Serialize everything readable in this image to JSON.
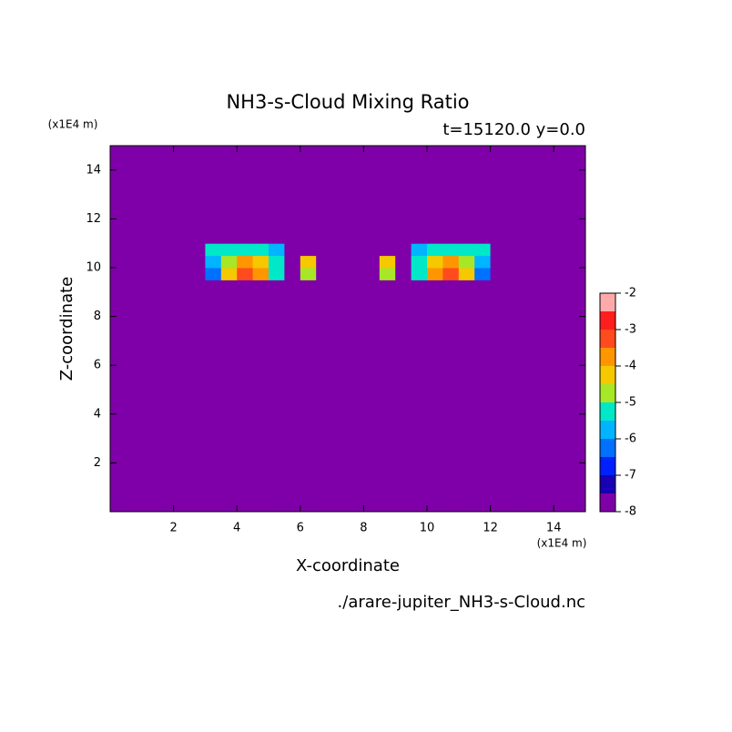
{
  "chart_data": {
    "type": "contour",
    "title": "NH3-s-Cloud Mixing Ratio",
    "subtitle": "t=15120.0 y=0.0",
    "x_label": "X-coordinate",
    "y_label": "Z-coordinate",
    "x_unit": "(x1E4 m)",
    "y_unit": "(x1E4 m)",
    "source": "./arare-jupiter_NH3-s-Cloud.nc",
    "xlim": [
      0,
      15
    ],
    "ylim": [
      0,
      15
    ],
    "xticks": [
      2,
      4,
      6,
      8,
      10,
      12,
      14
    ],
    "yticks": [
      2,
      4,
      6,
      8,
      10,
      12,
      14
    ],
    "levels": [
      -8,
      -7.5,
      -7,
      -6.5,
      -6,
      -5.5,
      -5,
      -4.5,
      -4,
      -3.5,
      -3,
      -2.5,
      -2
    ],
    "level_colors": [
      "#7f00a8",
      "#1800b4",
      "#0020ff",
      "#0070ff",
      "#00b4ff",
      "#00e8c8",
      "#a8e628",
      "#f5c800",
      "#ff9600",
      "#ff4b1e",
      "#ff1e1e",
      "#ffaaaa"
    ],
    "colorbar_ticks": [
      -8,
      -7,
      -6,
      -5,
      -4,
      -3,
      -2
    ],
    "values": [
      [
        -8,
        -8,
        -8,
        -8,
        -8,
        -8,
        -8,
        -8,
        -8,
        -8,
        -8,
        -8,
        -8,
        -8,
        -8,
        -8,
        -8,
        -8,
        -8,
        -8,
        -8,
        -8,
        -8,
        -8,
        -8,
        -8,
        -8,
        -8,
        -8,
        -8
      ],
      [
        -8,
        -8,
        -8,
        -8,
        -8,
        -8,
        -8,
        -8,
        -8,
        -8,
        -8,
        -8,
        -8,
        -8,
        -8,
        -8,
        -8,
        -8,
        -8,
        -8,
        -8,
        -8,
        -8,
        -8,
        -8,
        -8,
        -8,
        -8,
        -8,
        -8
      ],
      [
        -8,
        -8,
        -8,
        -8,
        -8,
        -8,
        -8,
        -8,
        -8,
        -8,
        -8,
        -8,
        -8,
        -8,
        -8,
        -8,
        -8,
        -8,
        -8,
        -8,
        -8,
        -8,
        -8,
        -8,
        -8,
        -8,
        -8,
        -8,
        -8,
        -8
      ],
      [
        -8,
        -8,
        -8,
        -8,
        -8,
        -8,
        -8,
        -8,
        -8,
        -8,
        -8,
        -8,
        -8,
        -8,
        -8,
        -8,
        -8,
        -8,
        -8,
        -8,
        -8,
        -8,
        -8,
        -8,
        -8,
        -8,
        -8,
        -8,
        -8,
        -8
      ],
      [
        -8,
        -8,
        -8,
        -8,
        -8,
        -8,
        -8,
        -8,
        -8,
        -8,
        -8,
        -8,
        -8,
        -8,
        -8,
        -8,
        -8,
        -8,
        -8,
        -8,
        -8,
        -8,
        -8,
        -8,
        -8,
        -8,
        -8,
        -8,
        -8,
        -8
      ],
      [
        -8,
        -8,
        -8,
        -8,
        -8,
        -8,
        -8,
        -8,
        -8,
        -8,
        -8,
        -8,
        -8,
        -8,
        -8,
        -8,
        -8,
        -8,
        -8,
        -8,
        -8,
        -8,
        -8,
        -8,
        -8,
        -8,
        -8,
        -8,
        -8,
        -8
      ],
      [
        -8,
        -8,
        -8,
        -8,
        -8,
        -8,
        -8,
        -8,
        -8,
        -8,
        -8,
        -8,
        -8,
        -8,
        -8,
        -8,
        -8,
        -8,
        -8,
        -8,
        -8,
        -8,
        -8,
        -8,
        -8,
        -8,
        -8,
        -8,
        -8,
        -8
      ],
      [
        -8,
        -8,
        -8,
        -8,
        -8,
        -8,
        -8,
        -8,
        -8,
        -8,
        -8,
        -8,
        -8,
        -8,
        -8,
        -8,
        -8,
        -8,
        -8,
        -8,
        -8,
        -8,
        -8,
        -8,
        -8,
        -8,
        -8,
        -8,
        -8,
        -8
      ],
      [
        -8,
        -8,
        -8,
        -8,
        -8,
        -8,
        -8,
        -8,
        -8,
        -8,
        -8,
        -8,
        -8,
        -8,
        -8,
        -8,
        -8,
        -8,
        -8,
        -8,
        -8,
        -8,
        -8,
        -8,
        -8,
        -8,
        -8,
        -8,
        -8,
        -8
      ],
      [
        -8,
        -8,
        -8,
        -8,
        -8,
        -8,
        -8,
        -8,
        -8,
        -8,
        -8,
        -8,
        -8,
        -8,
        -8,
        -8,
        -8,
        -8,
        -8,
        -8,
        -8,
        -8,
        -8,
        -8,
        -8,
        -8,
        -8,
        -8,
        -8,
        -8
      ],
      [
        -8,
        -8,
        -8,
        -8,
        -8,
        -8,
        -8,
        -8,
        -8,
        -8,
        -8,
        -8,
        -8,
        -8,
        -8,
        -8,
        -8,
        -8,
        -8,
        -8,
        -8,
        -8,
        -8,
        -8,
        -8,
        -8,
        -8,
        -8,
        -8,
        -8
      ],
      [
        -8,
        -8,
        -8,
        -8,
        -8,
        -8,
        -8,
        -8,
        -8,
        -8,
        -8,
        -8,
        -8,
        -8,
        -8,
        -8,
        -8,
        -8,
        -8,
        -8,
        -8,
        -8,
        -8,
        -8,
        -8,
        -8,
        -8,
        -8,
        -8,
        -8
      ],
      [
        -8,
        -8,
        -8,
        -8,
        -8,
        -8,
        -8,
        -8,
        -8,
        -8,
        -8,
        -8,
        -8,
        -8,
        -8,
        -8,
        -8,
        -8,
        -8,
        -8,
        -8,
        -8,
        -8,
        -8,
        -8,
        -8,
        -8,
        -8,
        -8,
        -8
      ],
      [
        -8,
        -8,
        -8,
        -8,
        -8,
        -8,
        -8,
        -8,
        -8,
        -8,
        -8,
        -8,
        -8,
        -8,
        -8,
        -8,
        -8,
        -8,
        -8,
        -8,
        -8,
        -8,
        -8,
        -8,
        -8,
        -8,
        -8,
        -8,
        -8,
        -8
      ],
      [
        -8,
        -8,
        -8,
        -8,
        -8,
        -8,
        -8,
        -8,
        -8,
        -8,
        -8,
        -8,
        -8,
        -8,
        -8,
        -8,
        -8,
        -8,
        -8,
        -8,
        -8,
        -8,
        -8,
        -8,
        -8,
        -8,
        -8,
        -8,
        -8,
        -8
      ],
      [
        -8,
        -8,
        -8,
        -8,
        -8,
        -8,
        -8,
        -8,
        -8,
        -8,
        -8,
        -8,
        -8,
        -8,
        -8,
        -8,
        -8,
        -8,
        -8,
        -8,
        -8,
        -8,
        -8,
        -8,
        -8,
        -8,
        -8,
        -8,
        -8,
        -8
      ],
      [
        -8,
        -8,
        -8,
        -8,
        -8,
        -8,
        -8,
        -8,
        -8,
        -8,
        -8,
        -8,
        -8,
        -8,
        -8,
        -8,
        -8,
        -8,
        -8,
        -8,
        -8,
        -8,
        -8,
        -8,
        -8,
        -8,
        -8,
        -8,
        -8,
        -8
      ],
      [
        -8,
        -8,
        -8,
        -8,
        -8,
        -8,
        -8,
        -8,
        -8,
        -8,
        -8,
        -8,
        -8,
        -8,
        -8,
        -8,
        -8,
        -8,
        -8,
        -8,
        -8,
        -8,
        -8,
        -8,
        -8,
        -8,
        -8,
        -8,
        -8,
        -8
      ],
      [
        -8,
        -8,
        -8,
        -8,
        -8,
        -8,
        -8,
        -8,
        -8,
        -8,
        -8,
        -8,
        -8,
        -8,
        -8,
        -8,
        -8,
        -8,
        -8,
        -8,
        -8,
        -8,
        -8,
        -8,
        -8,
        -8,
        -8,
        -8,
        -8,
        -8
      ],
      [
        -8,
        -8,
        -8,
        -8,
        -8,
        -8,
        -6.5,
        -4.2,
        -3.2,
        -3.8,
        -5.5,
        -8,
        -5,
        -8,
        -8,
        -8,
        -8,
        -5,
        -8,
        -5.5,
        -3.8,
        -3.2,
        -4.2,
        -6.5,
        -8,
        -8,
        -8,
        -8,
        -8,
        -8
      ],
      [
        -8,
        -8,
        -8,
        -8,
        -8,
        -8,
        -6,
        -4.7,
        -3.8,
        -4.2,
        -5.3,
        -8,
        -4.2,
        -8,
        -8,
        -8,
        -8,
        -4.2,
        -8,
        -5.3,
        -4.2,
        -3.8,
        -4.7,
        -6,
        -8,
        -8,
        -8,
        -8,
        -8,
        -8
      ],
      [
        -8,
        -8,
        -8,
        -8,
        -8,
        -8,
        -5.2,
        -5.2,
        -5.2,
        -5.2,
        -5.8,
        -8,
        -8,
        -8,
        -8,
        -8,
        -8,
        -8,
        -8,
        -5.8,
        -5.2,
        -5.2,
        -5.2,
        -5.2,
        -8,
        -8,
        -8,
        -8,
        -8,
        -8
      ],
      [
        -8,
        -8,
        -8,
        -8,
        -8,
        -8,
        -8,
        -8,
        -8,
        -8,
        -8,
        -8,
        -8,
        -8,
        -8,
        -8,
        -8,
        -8,
        -8,
        -8,
        -8,
        -8,
        -8,
        -8,
        -8,
        -8,
        -8,
        -8,
        -8,
        -8
      ],
      [
        -8,
        -8,
        -8,
        -8,
        -8,
        -8,
        -8,
        -8,
        -8,
        -8,
        -8,
        -8,
        -8,
        -8,
        -8,
        -8,
        -8,
        -8,
        -8,
        -8,
        -8,
        -8,
        -8,
        -8,
        -8,
        -8,
        -8,
        -8,
        -8,
        -8
      ],
      [
        -8,
        -8,
        -8,
        -8,
        -8,
        -8,
        -8,
        -8,
        -8,
        -8,
        -8,
        -8,
        -8,
        -8,
        -8,
        -8,
        -8,
        -8,
        -8,
        -8,
        -8,
        -8,
        -8,
        -8,
        -8,
        -8,
        -8,
        -8,
        -8,
        -8
      ],
      [
        -8,
        -8,
        -8,
        -8,
        -8,
        -8,
        -8,
        -8,
        -8,
        -8,
        -8,
        -8,
        -8,
        -8,
        -8,
        -8,
        -8,
        -8,
        -8,
        -8,
        -8,
        -8,
        -8,
        -8,
        -8,
        -8,
        -8,
        -8,
        -8,
        -8
      ],
      [
        -8,
        -8,
        -8,
        -8,
        -8,
        -8,
        -8,
        -8,
        -8,
        -8,
        -8,
        -8,
        -8,
        -8,
        -8,
        -8,
        -8,
        -8,
        -8,
        -8,
        -8,
        -8,
        -8,
        -8,
        -8,
        -8,
        -8,
        -8,
        -8,
        -8
      ],
      [
        -8,
        -8,
        -8,
        -8,
        -8,
        -8,
        -8,
        -8,
        -8,
        -8,
        -8,
        -8,
        -8,
        -8,
        -8,
        -8,
        -8,
        -8,
        -8,
        -8,
        -8,
        -8,
        -8,
        -8,
        -8,
        -8,
        -8,
        -8,
        -8,
        -8
      ],
      [
        -8,
        -8,
        -8,
        -8,
        -8,
        -8,
        -8,
        -8,
        -8,
        -8,
        -8,
        -8,
        -8,
        -8,
        -8,
        -8,
        -8,
        -8,
        -8,
        -8,
        -8,
        -8,
        -8,
        -8,
        -8,
        -8,
        -8,
        -8,
        -8,
        -8
      ],
      [
        -8,
        -8,
        -8,
        -8,
        -8,
        -8,
        -8,
        -8,
        -8,
        -8,
        -8,
        -8,
        -8,
        -8,
        -8,
        -8,
        -8,
        -8,
        -8,
        -8,
        -8,
        -8,
        -8,
        -8,
        -8,
        -8,
        -8,
        -8,
        -8,
        -8
      ]
    ]
  }
}
